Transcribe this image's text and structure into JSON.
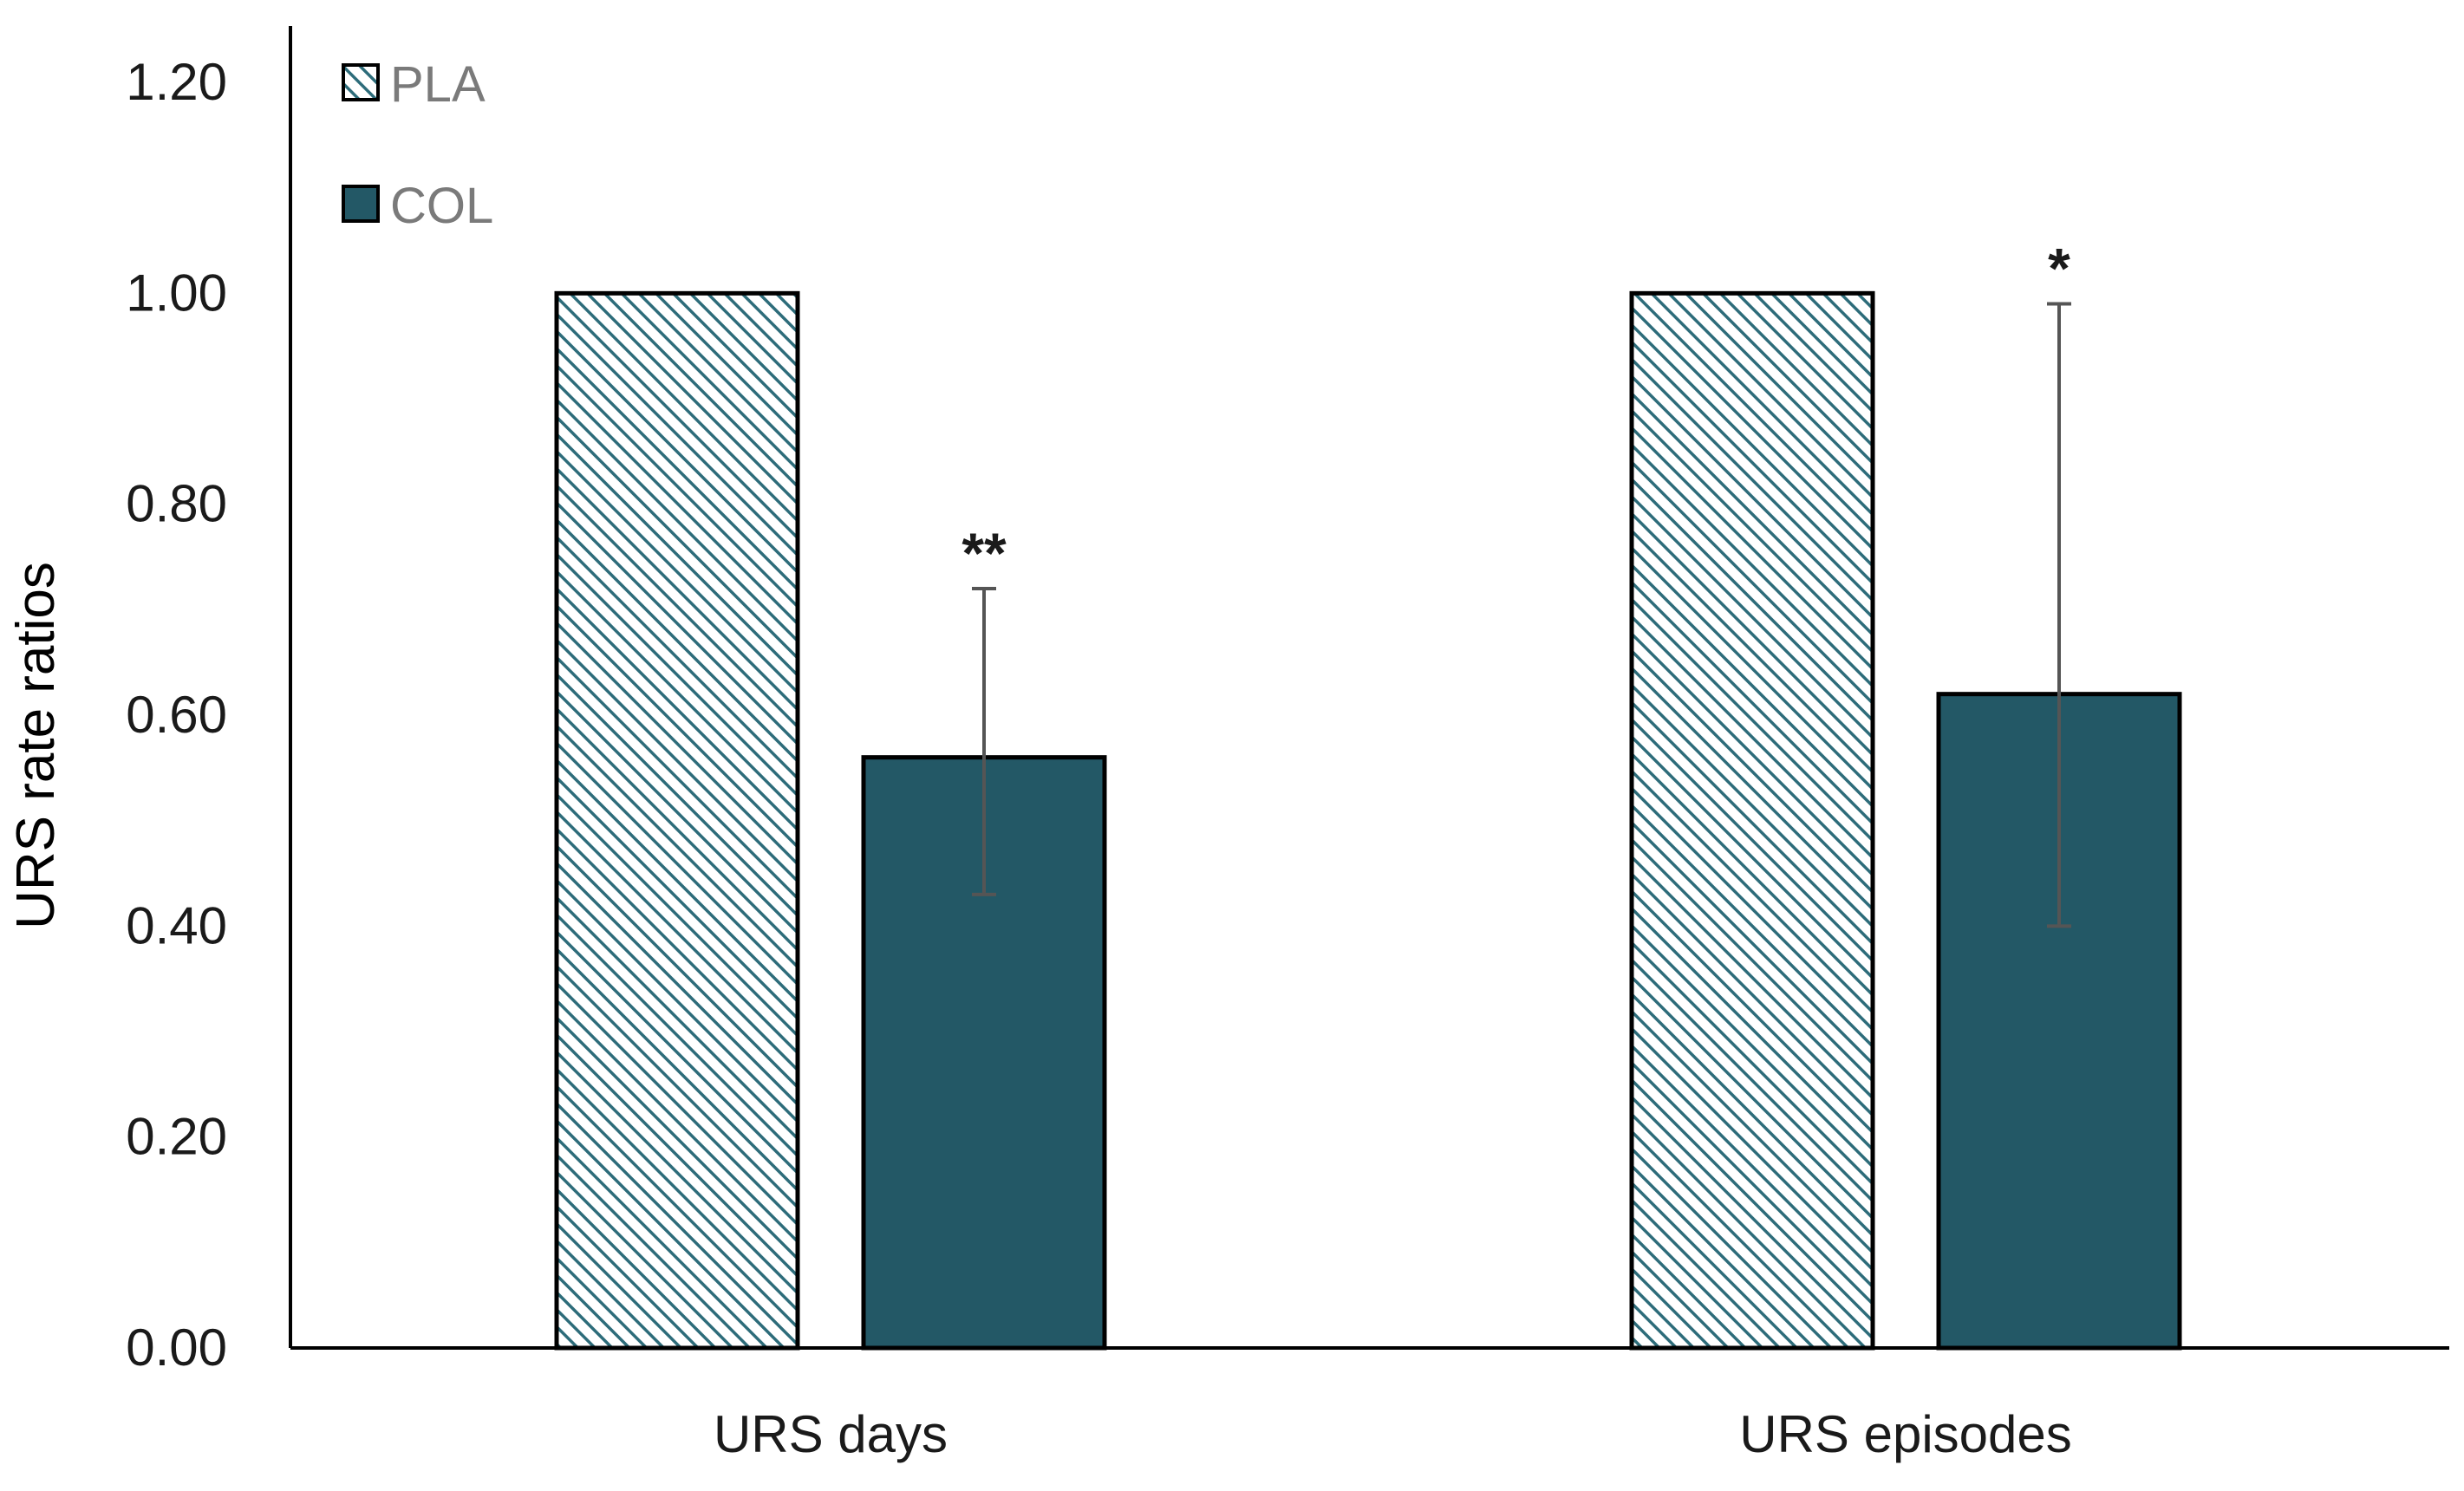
{
  "chart_data": {
    "type": "bar",
    "title": "",
    "xlabel": "",
    "ylabel": "URS rate ratios",
    "ylim": [
      0,
      1.2
    ],
    "yticks": [
      "0.00",
      "0.20",
      "0.40",
      "0.60",
      "0.80",
      "1.00",
      "1.20"
    ],
    "grid": false,
    "legend_position": "top-left",
    "categories": [
      "URS days",
      "URS episodes"
    ],
    "series": [
      {
        "name": "PLA",
        "values": [
          1.0,
          1.0
        ],
        "pattern": "diagonal-hatch",
        "color": "#2d6c7a"
      },
      {
        "name": "COL",
        "values": [
          0.56,
          0.62
        ],
        "error_low": [
          0.43,
          0.4
        ],
        "error_high": [
          0.72,
          0.99
        ],
        "significance": [
          "**",
          "*"
        ],
        "color": "#235866"
      }
    ]
  },
  "colors": {
    "axis": "#000000",
    "bar_outline": "#000000",
    "error_bar": "#555555",
    "hatch_line": "#2d6c7a"
  }
}
